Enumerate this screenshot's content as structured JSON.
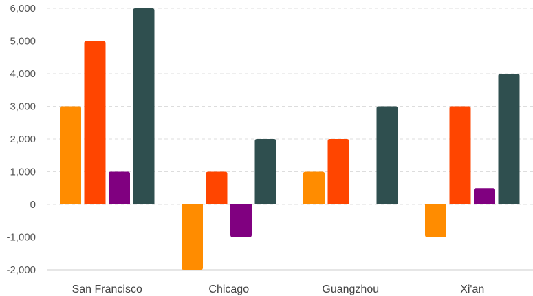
{
  "chart_data": {
    "type": "bar",
    "categories": [
      "San Francisco",
      "Chicago",
      "Guangzhou",
      "Xi'an"
    ],
    "series": [
      {
        "values": [
          3000,
          -2000,
          1000,
          -1000
        ],
        "color": "#FF8C00"
      },
      {
        "values": [
          5000,
          1000,
          2000,
          3000
        ],
        "color": "#FF4500"
      },
      {
        "values": [
          1000,
          -1000,
          0,
          500
        ],
        "color": "#800080"
      },
      {
        "values": [
          6000,
          2000,
          3000,
          4000
        ],
        "color": "#2F4F4F"
      }
    ],
    "ylim": [
      -2000,
      6000
    ],
    "y_ticks": [
      -2000,
      -1000,
      0,
      1000,
      2000,
      3000,
      4000,
      5000,
      6000
    ],
    "y_tick_labels": [
      "-2,000",
      "-1,000",
      "0",
      "1,000",
      "2,000",
      "3,000",
      "4,000",
      "5,000",
      "6,000"
    ],
    "grid": true,
    "legend": "none"
  }
}
